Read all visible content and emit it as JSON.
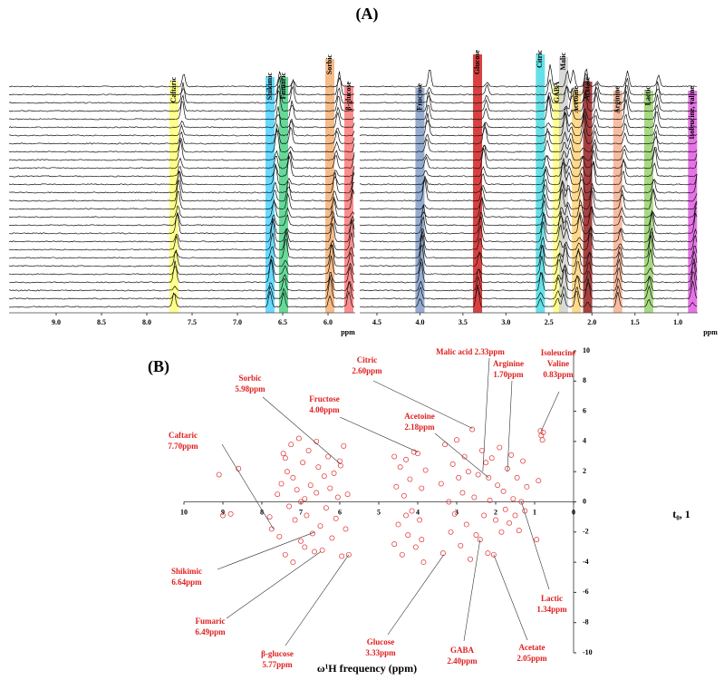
{
  "chart_data": [
    {
      "type": "spectra",
      "title": "(A)",
      "panels": [
        {
          "xlim": [
            9.52,
            5.7
          ],
          "xticks": [
            {
              "value": 9,
              "label": "9.0"
            },
            8.5,
            {
              "value": 8,
              "label": "8.0"
            },
            7.5,
            {
              "value": 7,
              "label": "7.0"
            },
            6.5,
            {
              "value": 6,
              "label": "6.0"
            }
          ],
          "axis_label": "ppm"
        },
        {
          "xlim": [
            4.7,
            0.77
          ],
          "xticks": [
            4.5,
            {
              "value": 4,
              "label": "4.0"
            },
            3.5,
            {
              "value": 3,
              "label": "3.0"
            },
            2.5,
            {
              "value": 2,
              "label": "2.0"
            },
            1.5,
            {
              "value": 1,
              "label": "1.0"
            }
          ],
          "axis_label": "ppm"
        }
      ],
      "regions": [
        {
          "name": "Caftaric",
          "position": 7.7,
          "color": "#ffff66",
          "panel": 0
        },
        {
          "name": "Shikimic",
          "position": 6.64,
          "color": "#33ccff",
          "panel": 0
        },
        {
          "name": "Fumaric",
          "position": 6.49,
          "color": "#33cc77",
          "panel": 0
        },
        {
          "name": "Sorbic",
          "position": 5.98,
          "color": "#f4a460",
          "panel": 0
        },
        {
          "name": "β-glucose",
          "position": 5.77,
          "color": "#ff6666",
          "panel": 0
        },
        {
          "name": "Fructose",
          "position": 4.0,
          "color": "#7090c0",
          "panel": 1
        },
        {
          "name": "Glucose",
          "position": 3.33,
          "color": "#cc0000",
          "panel": 1
        },
        {
          "name": "Citric",
          "position": 2.6,
          "color": "#33d6e0",
          "panel": 1
        },
        {
          "name": "GABA",
          "position": 2.4,
          "color": "#ffff66",
          "panel": 1
        },
        {
          "name": "Malic",
          "position": 2.33,
          "color": "#cccccc",
          "panel": 1
        },
        {
          "name": "Acetoine",
          "position": 2.18,
          "color": "#ffcc66",
          "panel": 1
        },
        {
          "name": "Acetate",
          "position": 2.05,
          "color": "#8b0000",
          "panel": 1
        },
        {
          "name": "Arginine",
          "position": 1.7,
          "color": "#f4a582",
          "panel": 1
        },
        {
          "name": "Lactic",
          "position": 1.34,
          "color": "#88cc55",
          "panel": 1
        },
        {
          "name": "Isoleucine, valine",
          "position": 0.83,
          "color": "#dd44dd",
          "panel": 1
        }
      ]
    },
    {
      "type": "scatter",
      "title": "(B)",
      "xlabel": "ω¹H frequency (ppm)",
      "ylabel": "t₀, 1",
      "xlim": [
        10,
        0
      ],
      "ylim": [
        -10,
        10
      ],
      "xticks": [
        10,
        9,
        8,
        7,
        6,
        5,
        4,
        3,
        2,
        1,
        0
      ],
      "yticks": [
        -10,
        -8,
        -6,
        -4,
        -2,
        0,
        2,
        4,
        6,
        8,
        10
      ],
      "color": "#e03030",
      "x": [
        9.1,
        9.0,
        8.8,
        8.6,
        7.8,
        7.75,
        7.6,
        7.55,
        7.5,
        7.45,
        7.4,
        7.35,
        7.3,
        7.25,
        7.2,
        7.15,
        7.1,
        7.05,
        7.0,
        6.95,
        6.9,
        6.85,
        6.8,
        6.75,
        6.7,
        6.65,
        6.6,
        6.55,
        6.5,
        6.45,
        6.4,
        6.35,
        6.3,
        6.25,
        6.2,
        6.15,
        6.1,
        6.05,
        6.0,
        5.98,
        5.95,
        5.9,
        5.85,
        5.8,
        5.77,
        7.0,
        7.2,
        6.6,
        7.4,
        6.9,
        4.6,
        4.55,
        4.5,
        4.45,
        4.4,
        4.35,
        4.3,
        4.25,
        4.2,
        4.15,
        4.1,
        4.05,
        4.0,
        3.95,
        3.9,
        3.85,
        3.8,
        4.6,
        4.3,
        3.9,
        3.4,
        3.35,
        3.3,
        3.2,
        3.15,
        3.1,
        3.05,
        3.0,
        2.95,
        2.9,
        2.85,
        2.8,
        2.75,
        2.7,
        2.65,
        2.6,
        2.55,
        2.5,
        2.45,
        2.4,
        2.35,
        2.3,
        2.25,
        2.2,
        2.18,
        2.15,
        2.1,
        2.05,
        2.0,
        1.95,
        1.9,
        1.85,
        1.8,
        1.75,
        1.7,
        1.65,
        1.6,
        1.55,
        1.5,
        1.45,
        1.4,
        1.34,
        1.3,
        1.25,
        1.2,
        0.95,
        0.9,
        0.85,
        0.83,
        0.8,
        0.78
      ],
      "y": [
        1.8,
        -0.9,
        -0.8,
        2.2,
        -1.0,
        -1.8,
        0.5,
        -2.3,
        1.2,
        3.2,
        -3.5,
        2.0,
        -0.3,
        3.8,
        1.6,
        -1.2,
        0.8,
        4.2,
        -2.6,
        2.6,
        0.2,
        -0.9,
        3.4,
        1.1,
        -2.1,
        -3.3,
        0.6,
        2.3,
        -1.6,
        -3.2,
        1.7,
        -0.4,
        3.0,
        0.9,
        -2.4,
        1.9,
        -1.1,
        0.3,
        2.7,
        2.4,
        -3.6,
        3.7,
        -1.8,
        0.5,
        -3.5,
        0.0,
        -4.0,
        4.0,
        2.9,
        -3.0,
        3.0,
        1.0,
        -1.5,
        2.3,
        -3.5,
        0.4,
        2.8,
        -2.2,
        1.5,
        -0.6,
        3.3,
        -3.0,
        3.2,
        -1.2,
        0.9,
        -4.0,
        2.1,
        -2.8,
        -0.9,
        -2.5,
        1.2,
        -3.4,
        3.8,
        0.0,
        -2.0,
        2.5,
        -0.8,
        4.1,
        1.6,
        -2.9,
        0.6,
        3.0,
        -1.5,
        2.0,
        -3.8,
        4.8,
        0.3,
        -2.2,
        1.8,
        -2.5,
        3.4,
        -0.9,
        2.6,
        -3.4,
        1.6,
        0.1,
        2.9,
        -3.5,
        -1.2,
        1.1,
        3.6,
        -2.0,
        0.7,
        -0.5,
        2.2,
        -1.4,
        3.1,
        0.2,
        -0.9,
        1.6,
        -1.9,
        0.0,
        2.7,
        -0.6,
        1.0,
        -2.5,
        1.4,
        4.7,
        4.4,
        4.1,
        4.6
      ],
      "annotations": [
        {
          "lines": [
            "Citric",
            "2.60ppm"
          ],
          "x": 2.6,
          "y": 4.87
        },
        {
          "lines": [
            "Malic acid 2.33ppm"
          ],
          "x": 2.33,
          "y": 2.0
        },
        {
          "lines": [
            "Arginine",
            "1.70ppm"
          ],
          "x": 1.7,
          "y": 2.0
        },
        {
          "lines": [
            "Isoleucine",
            "Valine",
            "0.83ppm"
          ],
          "x": 0.83,
          "y": 4.7
        },
        {
          "lines": [
            "Sorbic",
            "5.98ppm"
          ],
          "x": 5.98,
          "y": 2.5
        },
        {
          "lines": [
            "Fructose",
            "4.00ppm"
          ],
          "x": 4.0,
          "y": 3.3
        },
        {
          "lines": [
            "Acetoine",
            "2.18ppm"
          ],
          "x": 2.18,
          "y": 1.6
        },
        {
          "lines": [
            "Caftaric",
            "7.70ppm"
          ],
          "x": 7.7,
          "y": -1.8
        },
        {
          "lines": [
            "Shikimic",
            "6.64ppm"
          ],
          "x": 6.64,
          "y": -2.0
        },
        {
          "lines": [
            "Fumaric",
            "6.49ppm"
          ],
          "x": 6.49,
          "y": -3.3
        },
        {
          "lines": [
            "β-glucose",
            "5.77ppm"
          ],
          "x": 5.77,
          "y": -3.5
        },
        {
          "lines": [
            "Glucose",
            "3.33ppm"
          ],
          "x": 3.33,
          "y": -3.5
        },
        {
          "lines": [
            "GABA",
            "2.40ppm"
          ],
          "x": 2.4,
          "y": -2.5
        },
        {
          "lines": [
            "Acetate",
            "2.05ppm"
          ],
          "x": 2.05,
          "y": -3.5
        },
        {
          "lines": [
            "Lactic",
            "1.34ppm"
          ],
          "x": 1.34,
          "y": 0.0
        }
      ]
    }
  ]
}
